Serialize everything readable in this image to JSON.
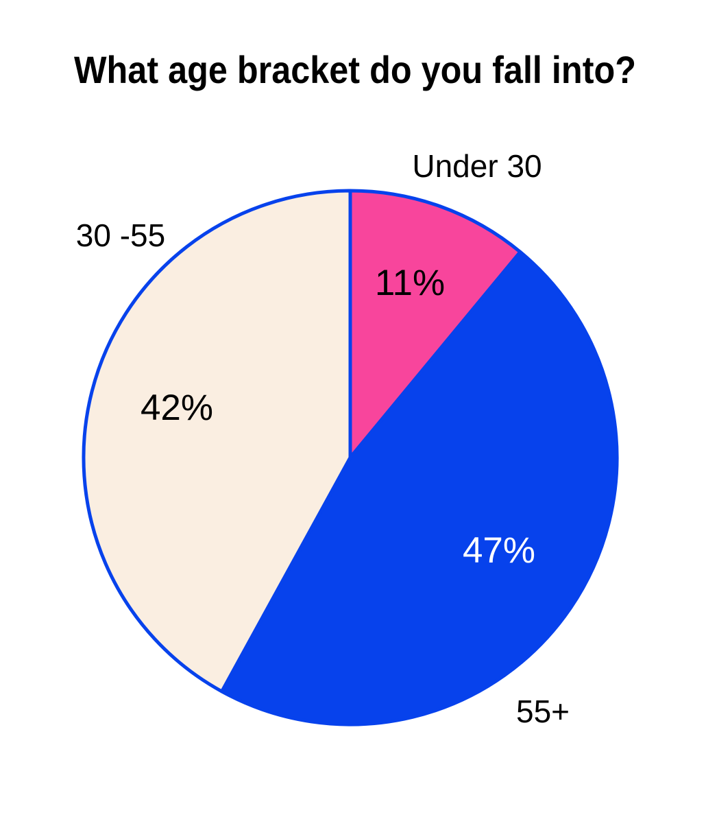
{
  "title": "What age bracket do you fall into?",
  "chart_data": {
    "type": "pie",
    "title": "What age bracket do you fall into?",
    "start_angle_deg": 0,
    "direction": "clockwise",
    "legend": "none",
    "stroke_color": "#0742EC",
    "stroke_width": 5,
    "background_color": "#ffffff",
    "slices": [
      {
        "label": "Under 30",
        "value": 11,
        "value_label": "11%",
        "color": "#F8459C",
        "text_color": "#000000"
      },
      {
        "label": "55+",
        "value": 47,
        "value_label": "47%",
        "color": "#0742EC",
        "text_color": "#FFFFFF"
      },
      {
        "label": "30 -55",
        "value": 42,
        "value_label": "42%",
        "color": "#FAEEE1",
        "text_color": "#000000"
      }
    ]
  }
}
